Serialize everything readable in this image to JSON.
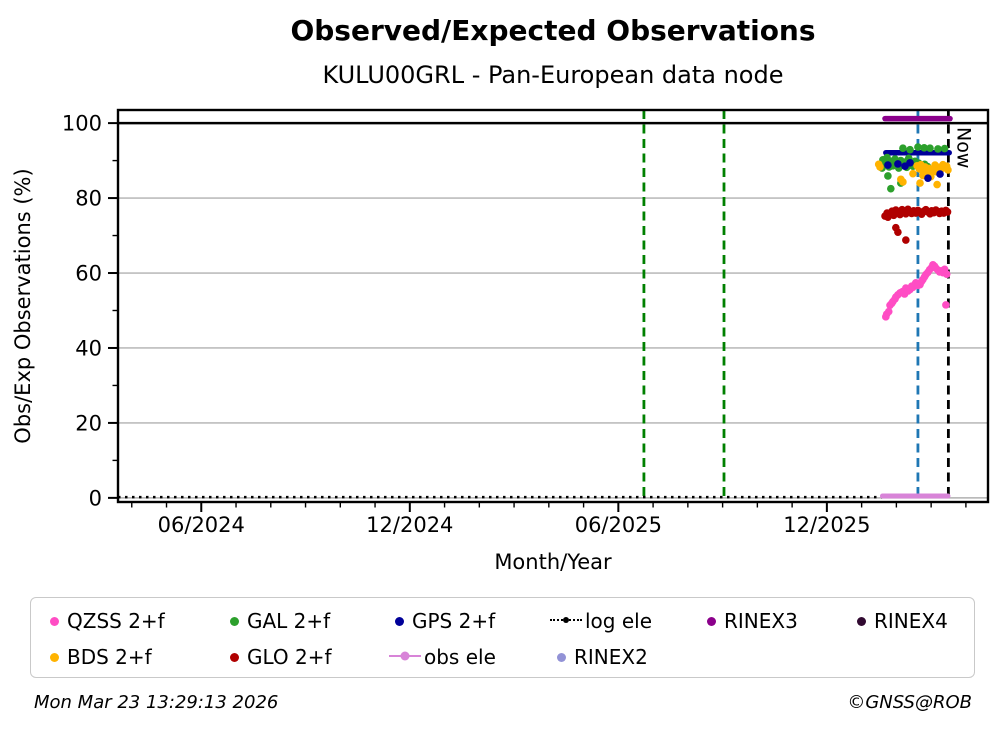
{
  "chart_data": {
    "type": "scatter",
    "title": "Observed/Expected Observations",
    "subtitle": "KULU00GRL - Pan-European data node",
    "xlabel": "Month/Year",
    "ylabel": "Obs/Exp Observations (%)",
    "x_domain": [
      2024.217,
      2026.303
    ],
    "ylim": [
      -1.1,
      103.5
    ],
    "yticks": [
      0,
      20,
      40,
      60,
      80,
      100
    ],
    "yticks_minor": [
      10,
      30,
      50,
      70,
      90
    ],
    "xtick_labels": [
      "06/2024",
      "12/2024",
      "06/2025",
      "12/2025"
    ],
    "grid": "horizontal-major",
    "colors": {
      "grid": "#b0b0b0",
      "axis": "#000000"
    },
    "refline": {
      "y": 100,
      "color": "#000000"
    },
    "vlines": [
      {
        "name": "event-green-1",
        "x": 2025.478,
        "color": "#008000"
      },
      {
        "name": "event-green-2",
        "x": 2025.67,
        "color": "#008000"
      },
      {
        "name": "latest-check",
        "x": 2026.135,
        "color": "#1f77b4"
      },
      {
        "name": "now",
        "x": 2026.208,
        "color": "#000000",
        "label": "Now"
      }
    ],
    "lines": [
      {
        "name": "log ele",
        "color": "#000000",
        "width": 2.6,
        "dotted": true,
        "y": 0.2,
        "x_start": 2024.217,
        "x_end": 2026.208
      },
      {
        "name": "obs ele",
        "color": "#d884d8",
        "width": 5,
        "dotted": false,
        "y": 0.5,
        "x_start": 2026.05,
        "x_end": 2026.207
      },
      {
        "name": "GPS 2+f",
        "color": "#000099",
        "width": 5.5,
        "dotted": false,
        "y": 92.1,
        "x_start": 2026.058,
        "x_end": 2026.21
      },
      {
        "name": "RINEX3",
        "color": "#8b008b",
        "width": 5.5,
        "dotted": false,
        "y": 101.2,
        "x_start": 2026.056,
        "x_end": 2026.212
      }
    ],
    "series": [
      {
        "name": "QZSS 2+f",
        "color": "#ff4dc4",
        "points": [
          [
            2026.058,
            48.3
          ],
          [
            2026.06,
            49.0
          ],
          [
            2026.065,
            49.7
          ],
          [
            2026.068,
            51.4
          ],
          [
            2026.072,
            51.9
          ],
          [
            2026.075,
            52.4
          ],
          [
            2026.08,
            53.1
          ],
          [
            2026.082,
            53.6
          ],
          [
            2026.087,
            54.2
          ],
          [
            2026.092,
            54.7
          ],
          [
            2026.096,
            54.9
          ],
          [
            2026.099,
            55.1
          ],
          [
            2026.103,
            54.4
          ],
          [
            2026.106,
            56.0
          ],
          [
            2026.111,
            55.2
          ],
          [
            2026.116,
            55.6
          ],
          [
            2026.12,
            56.5
          ],
          [
            2026.123,
            56.2
          ],
          [
            2026.128,
            57.0
          ],
          [
            2026.13,
            57.4
          ],
          [
            2026.135,
            56.7
          ],
          [
            2026.14,
            56.9
          ],
          [
            2026.144,
            57.8
          ],
          [
            2026.147,
            58.3
          ],
          [
            2026.151,
            59.0
          ],
          [
            2026.154,
            59.6
          ],
          [
            2026.159,
            60.2
          ],
          [
            2026.163,
            60.9
          ],
          [
            2026.168,
            61.5
          ],
          [
            2026.171,
            62.2
          ],
          [
            2026.175,
            61.8
          ],
          [
            2026.178,
            61.3
          ],
          [
            2026.183,
            60.8
          ],
          [
            2026.187,
            60.3
          ],
          [
            2026.192,
            60.6
          ],
          [
            2026.195,
            60.1
          ],
          [
            2026.199,
            61.0
          ],
          [
            2026.204,
            59.7
          ],
          [
            2026.202,
            51.5
          ]
        ]
      },
      {
        "name": "GLO 2+f",
        "color": "#b00000",
        "points": [
          [
            2026.056,
            75.2
          ],
          [
            2026.061,
            76.0
          ],
          [
            2026.063,
            74.9
          ],
          [
            2026.068,
            75.8
          ],
          [
            2026.073,
            76.5
          ],
          [
            2026.077,
            75.4
          ],
          [
            2026.082,
            76.8
          ],
          [
            2026.082,
            72.1
          ],
          [
            2026.087,
            76.2
          ],
          [
            2026.087,
            70.9
          ],
          [
            2026.092,
            75.6
          ],
          [
            2026.097,
            76.9
          ],
          [
            2026.101,
            76.3
          ],
          [
            2026.106,
            75.8
          ],
          [
            2026.106,
            68.8
          ],
          [
            2026.111,
            77.0
          ],
          [
            2026.116,
            76.4
          ],
          [
            2026.12,
            75.9
          ],
          [
            2026.125,
            76.6
          ],
          [
            2026.13,
            76.0
          ],
          [
            2026.135,
            76.7
          ],
          [
            2026.14,
            76.2
          ],
          [
            2026.144,
            75.7
          ],
          [
            2026.149,
            76.5
          ],
          [
            2026.154,
            76.9
          ],
          [
            2026.159,
            76.3
          ],
          [
            2026.164,
            75.8
          ],
          [
            2026.168,
            76.6
          ],
          [
            2026.173,
            76.1
          ],
          [
            2026.178,
            76.8
          ],
          [
            2026.183,
            76.4
          ],
          [
            2026.187,
            75.9
          ],
          [
            2026.192,
            76.5
          ],
          [
            2026.197,
            76.0
          ],
          [
            2026.202,
            76.7
          ],
          [
            2026.206,
            76.3
          ]
        ]
      },
      {
        "name": "GAL 2+f",
        "color": "#2ca02c",
        "points": [
          [
            2026.099,
            93.3
          ],
          [
            2026.116,
            92.9
          ],
          [
            2026.135,
            93.6
          ],
          [
            2026.15,
            93.4
          ],
          [
            2026.164,
            93.3
          ],
          [
            2026.183,
            93.1
          ],
          [
            2026.199,
            93.2
          ],
          [
            2026.051,
            90.2
          ],
          [
            2026.056,
            89.0
          ],
          [
            2026.061,
            90.8
          ],
          [
            2026.066,
            88.3
          ],
          [
            2026.07,
            89.8
          ],
          [
            2026.075,
            88.6
          ],
          [
            2026.08,
            90.4
          ],
          [
            2026.085,
            89.4
          ],
          [
            2026.089,
            88.0
          ],
          [
            2026.094,
            90.0
          ],
          [
            2026.099,
            88.8
          ],
          [
            2026.104,
            89.6
          ],
          [
            2026.108,
            88.2
          ],
          [
            2026.113,
            90.6
          ],
          [
            2026.118,
            89.0
          ],
          [
            2026.123,
            88.5
          ],
          [
            2026.128,
            89.8
          ],
          [
            2026.132,
            88.8
          ],
          [
            2026.137,
            89.3
          ],
          [
            2026.144,
            88.1
          ],
          [
            2026.151,
            89.0
          ],
          [
            2026.158,
            88.4
          ],
          [
            2026.049,
            88.0
          ],
          [
            2026.063,
            85.9
          ],
          [
            2026.07,
            82.5
          ],
          [
            2026.094,
            84.0
          ]
        ]
      },
      {
        "name": "BDS 2+f",
        "color": "#ffb300",
        "points": [
          [
            2026.041,
            89.0
          ],
          [
            2026.044,
            88.3
          ],
          [
            2026.094,
            85.0
          ],
          [
            2026.099,
            84.3
          ],
          [
            2026.123,
            86.5
          ],
          [
            2026.133,
            88.6
          ],
          [
            2026.138,
            87.8
          ],
          [
            2026.14,
            84.0
          ],
          [
            2026.142,
            88.9
          ],
          [
            2026.147,
            87.2
          ],
          [
            2026.147,
            86.0
          ],
          [
            2026.152,
            88.3
          ],
          [
            2026.157,
            86.8
          ],
          [
            2026.161,
            87.9
          ],
          [
            2026.166,
            86.3
          ],
          [
            2026.166,
            85.7
          ],
          [
            2026.171,
            87.5
          ],
          [
            2026.176,
            88.8
          ],
          [
            2026.18,
            87.0
          ],
          [
            2026.181,
            83.6
          ],
          [
            2026.185,
            88.2
          ],
          [
            2026.19,
            87.6
          ],
          [
            2026.195,
            88.9
          ],
          [
            2026.199,
            88.1
          ],
          [
            2026.204,
            88.5
          ],
          [
            2026.207,
            87.5
          ]
        ]
      },
      {
        "name": "GPS 2+f",
        "color": "#000099",
        "points": [
          [
            2026.063,
            88.8
          ],
          [
            2026.087,
            89.1
          ],
          [
            2026.104,
            88.5
          ],
          [
            2026.116,
            89.4
          ],
          [
            2026.159,
            85.3
          ],
          [
            2026.188,
            86.4
          ]
        ]
      }
    ],
    "legend": {
      "items": [
        {
          "key": "qzss",
          "label": "QZSS 2+f",
          "color": "#ff4dc4",
          "marker": "dot"
        },
        {
          "key": "gal",
          "label": "GAL 2+f",
          "color": "#2ca02c",
          "marker": "dot"
        },
        {
          "key": "gps",
          "label": "GPS 2+f",
          "color": "#000099",
          "marker": "dot"
        },
        {
          "key": "logele",
          "label": "log ele",
          "color": "#000000",
          "marker": "dotted-line-dot"
        },
        {
          "key": "rinex3",
          "label": "RINEX3",
          "color": "#8b008b",
          "marker": "dot"
        },
        {
          "key": "rinex4",
          "label": "RINEX4",
          "color": "#310a31",
          "marker": "dot"
        },
        {
          "key": "bds",
          "label": "BDS 2+f",
          "color": "#ffb300",
          "marker": "dot"
        },
        {
          "key": "glo",
          "label": "GLO 2+f",
          "color": "#b00000",
          "marker": "dot"
        },
        {
          "key": "obsele",
          "label": "obs ele",
          "color": "#d884d8",
          "marker": "line-dot"
        },
        {
          "key": "rinex2",
          "label": "RINEX2",
          "color": "#9292d6",
          "marker": "dot"
        }
      ]
    }
  },
  "footer": {
    "timestamp": "Mon Mar 23 13:29:13 2026",
    "copyright": "©GNSS@ROB"
  }
}
